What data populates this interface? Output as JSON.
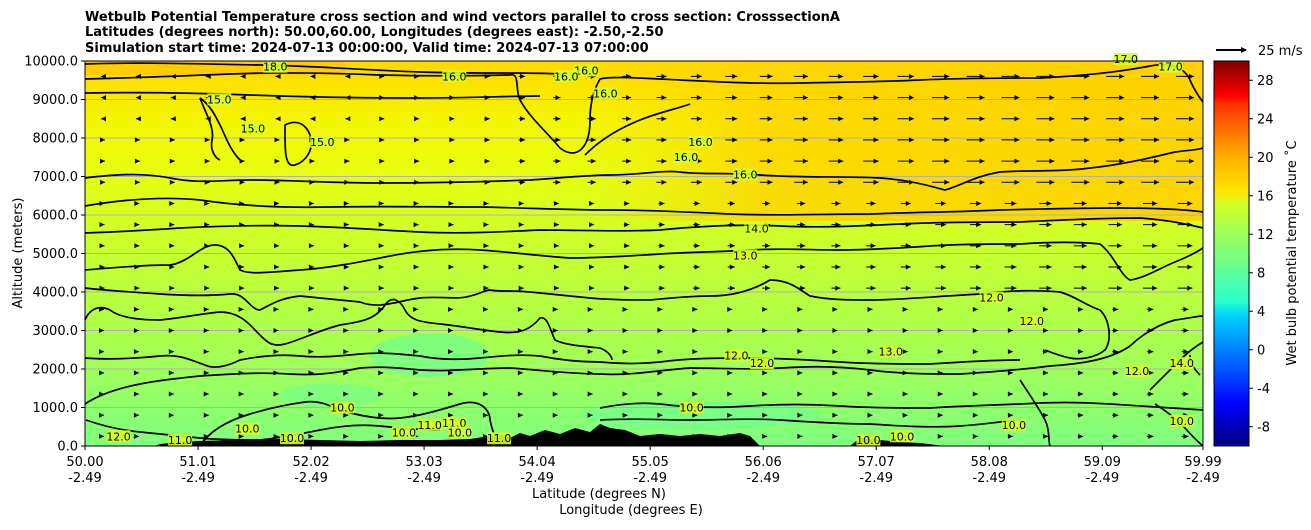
{
  "chart_data": {
    "type": "heatmap",
    "title_lines": [
      "Wetbulb Potential Temperature cross section and wind vectors parallel to cross section: CrosssectionA",
      "Latitudes (degrees north): 50.00,60.00, Longitudes (degrees east): -2.50,-2.50",
      "Simulation start time: 2024-07-13 00:00:00, Valid time: 2024-07-13 07:00:00"
    ],
    "xlabel": "Latitude (degrees N)",
    "xlabel2": "Longitude (degrees E)",
    "ylabel": "Altitude (meters)",
    "colorbar_label": "Wet bulb potential temperature $^\\circ$C",
    "colorbar_label_text": "Wet bulb potential temperature ˚C",
    "quiver_key_label": "25 m/s",
    "x_ticks": [
      {
        "lat": "50.00",
        "lon": "-2.49"
      },
      {
        "lat": "51.01",
        "lon": "-2.49"
      },
      {
        "lat": "52.02",
        "lon": "-2.49"
      },
      {
        "lat": "53.03",
        "lon": "-2.49"
      },
      {
        "lat": "54.04",
        "lon": "-2.49"
      },
      {
        "lat": "55.05",
        "lon": "-2.49"
      },
      {
        "lat": "56.06",
        "lon": "-2.49"
      },
      {
        "lat": "57.07",
        "lon": "-2.49"
      },
      {
        "lat": "58.08",
        "lon": "-2.49"
      },
      {
        "lat": "59.09",
        "lon": "-2.49"
      },
      {
        "lat": "59.99",
        "lon": "-2.49"
      }
    ],
    "y_ticks": [
      "0.0",
      "1000.0",
      "2000.0",
      "3000.0",
      "4000.0",
      "5000.0",
      "6000.0",
      "7000.0",
      "8000.0",
      "9000.0",
      "10000.0"
    ],
    "xlim": [
      50.0,
      59.99
    ],
    "ylim": [
      0,
      10000
    ],
    "colorbar_ticks": [
      "-8",
      "-4",
      "0",
      "4",
      "8",
      "12",
      "16",
      "20",
      "24",
      "28"
    ],
    "colorbar_range": [
      -10,
      30
    ],
    "colormap": "jet",
    "grid": "horizontal",
    "contour_levels_labeled": [
      "10.0",
      "11.0",
      "12.0",
      "13.0",
      "14.0",
      "15.0",
      "16.0",
      "17.0",
      "18.0"
    ],
    "contour_labels": [
      {
        "text": "18.0",
        "lat": 51.7,
        "alt": 9800
      },
      {
        "text": "16.0",
        "lat": 53.3,
        "alt": 9550
      },
      {
        "text": "16.0",
        "lat": 54.48,
        "alt": 9700
      },
      {
        "text": "16.0",
        "lat": 54.3,
        "alt": 9550
      },
      {
        "text": "16.0",
        "lat": 54.65,
        "alt": 9100
      },
      {
        "text": "15.0",
        "lat": 51.2,
        "alt": 8950
      },
      {
        "text": "15.0",
        "lat": 51.5,
        "alt": 8200
      },
      {
        "text": "15.0",
        "lat": 52.12,
        "alt": 7850
      },
      {
        "text": "16.0",
        "lat": 55.5,
        "alt": 7850
      },
      {
        "text": "16.0",
        "lat": 55.37,
        "alt": 7450
      },
      {
        "text": "16.0",
        "lat": 55.9,
        "alt": 7000
      },
      {
        "text": "17.0",
        "lat": 59.3,
        "alt": 10000
      },
      {
        "text": "17.0",
        "lat": 59.7,
        "alt": 9800
      },
      {
        "text": "14.0",
        "lat": 56.0,
        "alt": 5600
      },
      {
        "text": "13.0",
        "lat": 55.9,
        "alt": 4900
      },
      {
        "text": "12.0",
        "lat": 55.82,
        "alt": 2300
      },
      {
        "text": "12.0",
        "lat": 56.05,
        "alt": 2100
      },
      {
        "text": "13.0",
        "lat": 57.2,
        "alt": 2400
      },
      {
        "text": "12.0",
        "lat": 58.1,
        "alt": 3800
      },
      {
        "text": "12.0",
        "lat": 58.46,
        "alt": 3200
      },
      {
        "text": "12.0",
        "lat": 59.4,
        "alt": 1900
      },
      {
        "text": "14.0",
        "lat": 59.8,
        "alt": 2100
      },
      {
        "text": "10.0",
        "lat": 55.42,
        "alt": 950
      },
      {
        "text": "10.0",
        "lat": 52.3,
        "alt": 950
      },
      {
        "text": "10.0",
        "lat": 51.45,
        "alt": 400
      },
      {
        "text": "10.0",
        "lat": 51.85,
        "alt": 150
      },
      {
        "text": "11.0",
        "lat": 50.85,
        "alt": 100
      },
      {
        "text": "12.0",
        "lat": 50.3,
        "alt": 200
      },
      {
        "text": "10.0",
        "lat": 52.85,
        "alt": 300
      },
      {
        "text": "11.0",
        "lat": 53.08,
        "alt": 500
      },
      {
        "text": "11.0",
        "lat": 53.3,
        "alt": 550
      },
      {
        "text": "10.0",
        "lat": 53.35,
        "alt": 300
      },
      {
        "text": "11.0",
        "lat": 53.7,
        "alt": 150
      },
      {
        "text": "10.0",
        "lat": 57.0,
        "alt": 100
      },
      {
        "text": "10.0",
        "lat": 57.3,
        "alt": 200
      },
      {
        "text": "10.0",
        "lat": 58.3,
        "alt": 500
      },
      {
        "text": "10.0",
        "lat": 59.8,
        "alt": 600
      }
    ]
  }
}
